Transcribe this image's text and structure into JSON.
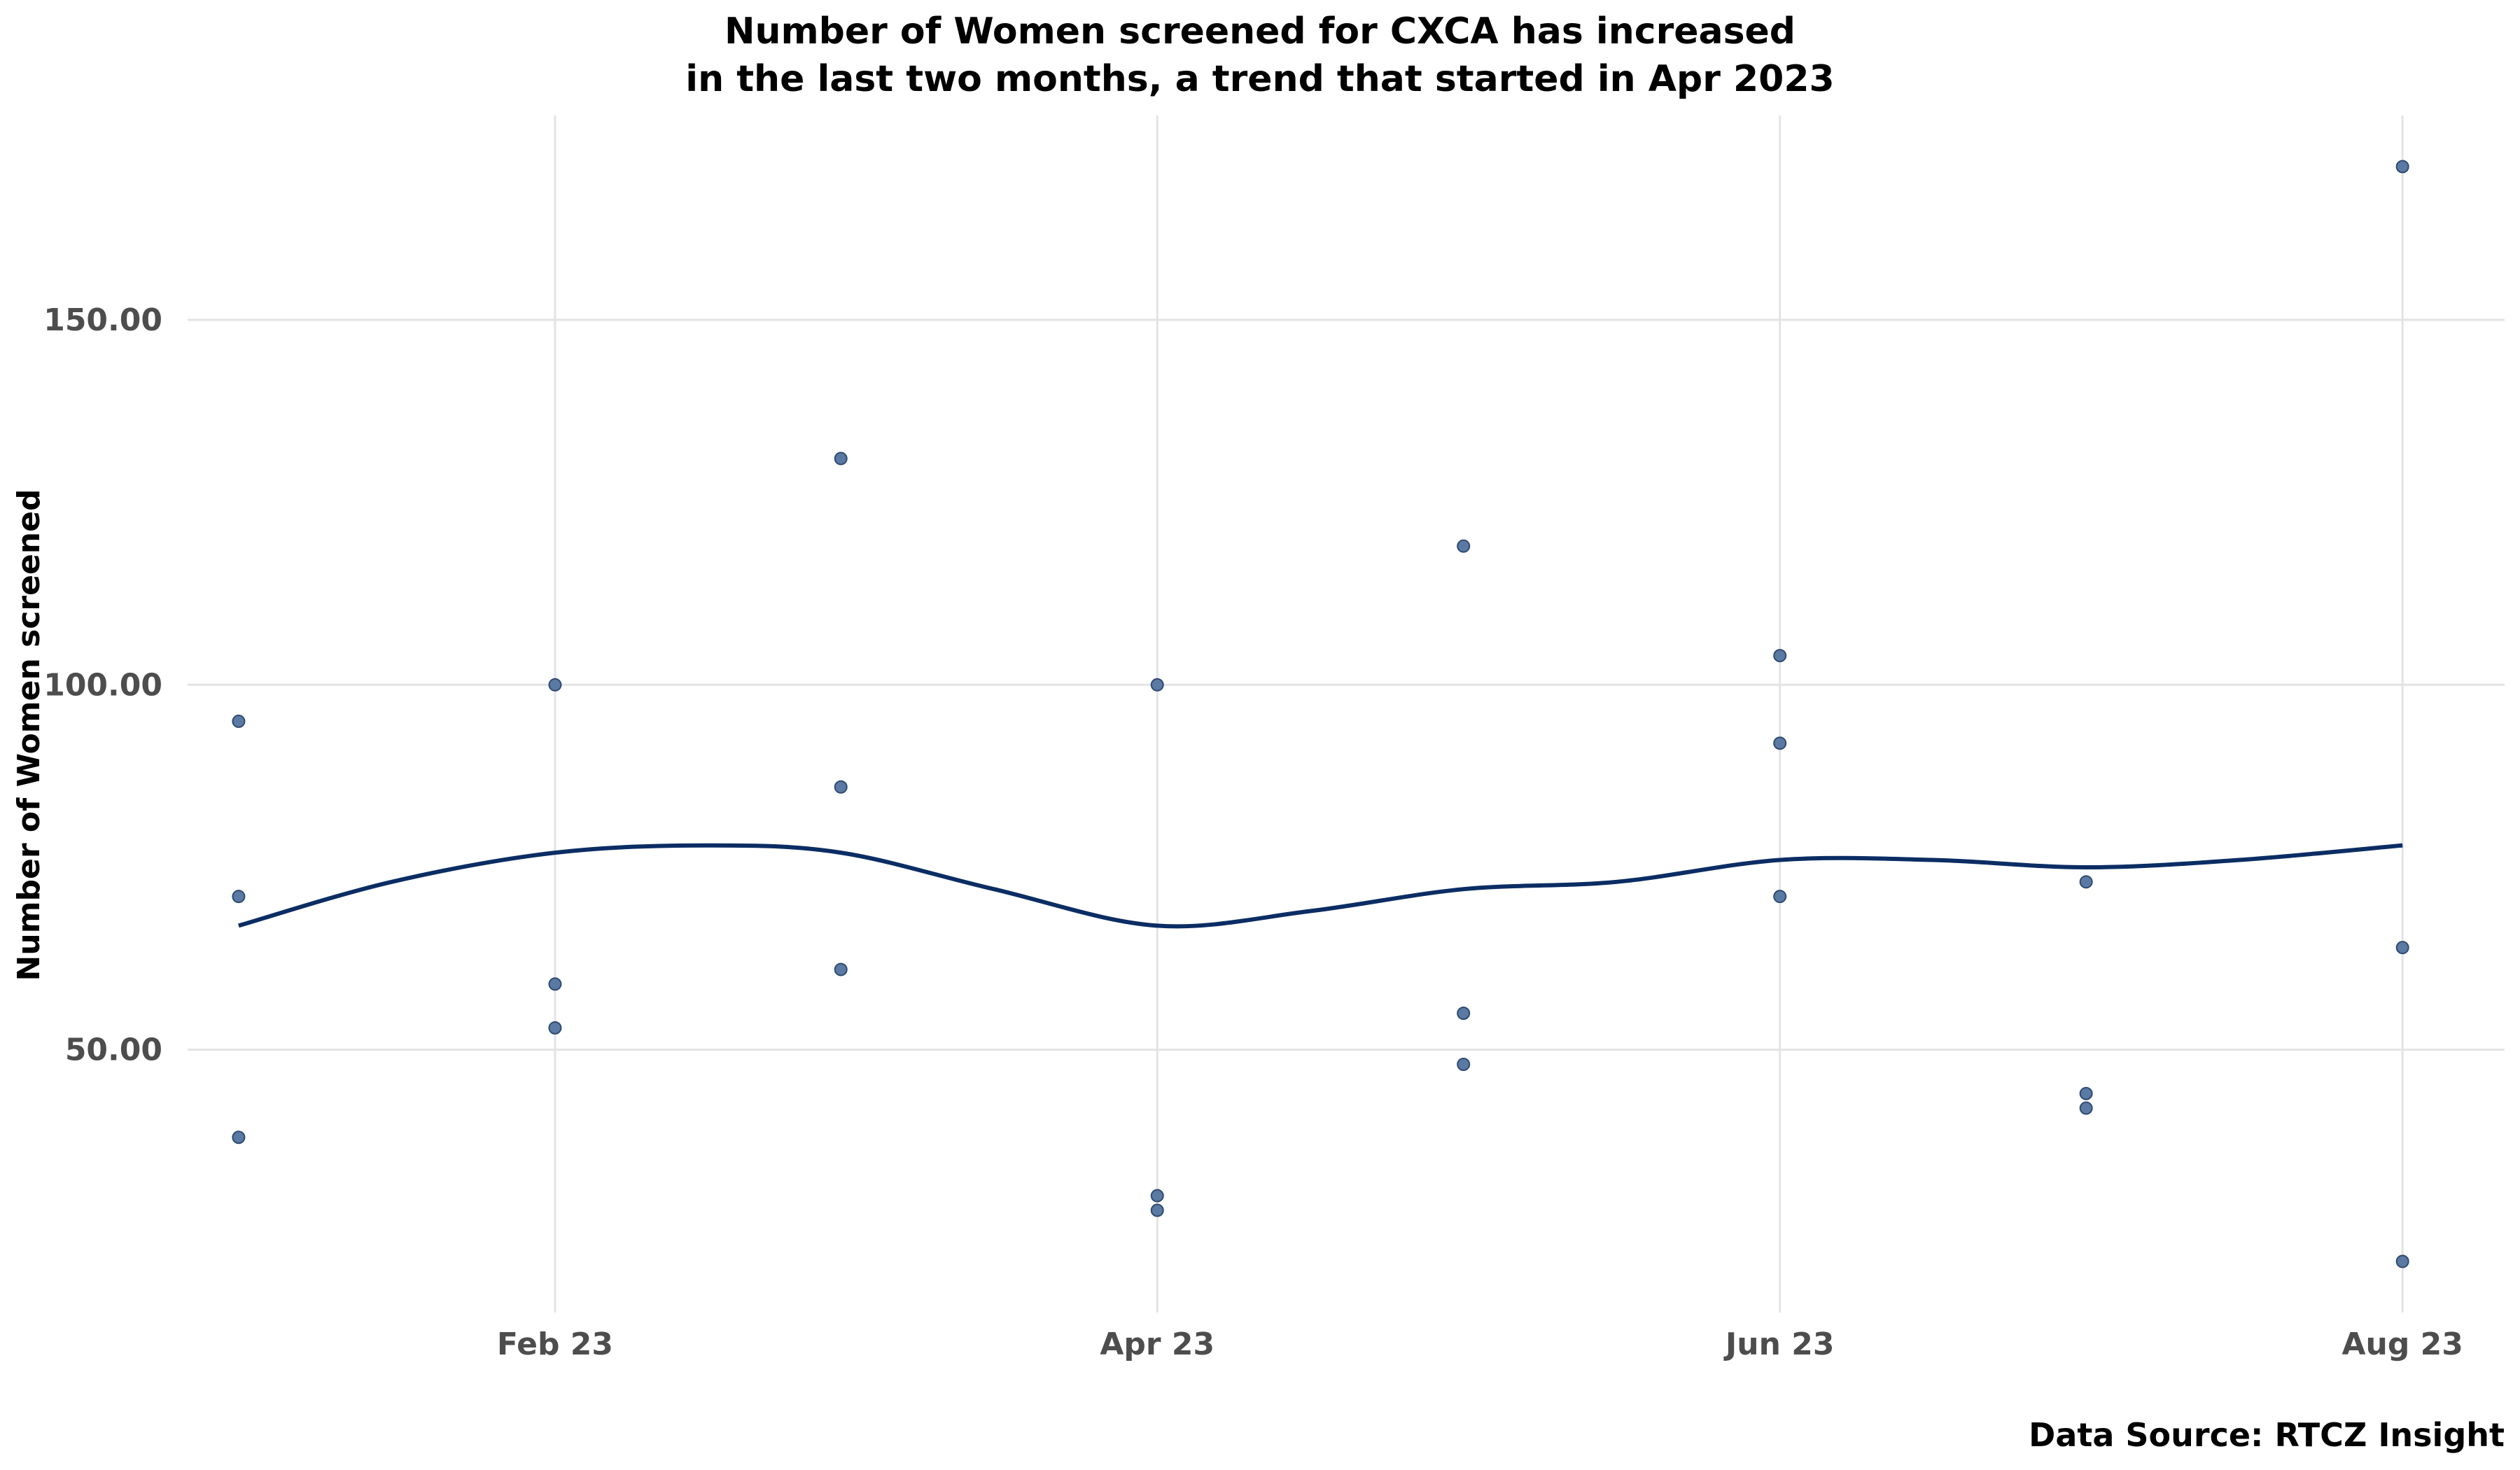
{
  "chart_data": {
    "type": "scatter",
    "title": "Number of Women screened for CXCA has increased",
    "subtitle": "in the last two months, a trend that started in Apr 2023",
    "xlabel": "",
    "ylabel": "Number of Women screened",
    "caption": "Data Source: RTCZ Insight",
    "x_ticks": [
      {
        "label": "Feb 23",
        "date": "2023-02-01"
      },
      {
        "label": "Apr 23",
        "date": "2023-04-01"
      },
      {
        "label": "Jun 23",
        "date": "2023-06-01"
      },
      {
        "label": "Aug 23",
        "date": "2023-08-01"
      }
    ],
    "y_ticks": [
      {
        "label": "50.00",
        "value": 50
      },
      {
        "label": "100.00",
        "value": 100
      },
      {
        "label": "150.00",
        "value": 150
      }
    ],
    "xlim": [
      "2022-12-27",
      "2023-08-11"
    ],
    "ylim": [
      14,
      178
    ],
    "grid": true,
    "legend": "none",
    "colors": {
      "point_fill": "#5b7aa3",
      "point_stroke": "#2e4a72",
      "trend_line": "#0b2d64"
    },
    "points": [
      {
        "date": "2023-01-01",
        "value": 95
      },
      {
        "date": "2023-01-01",
        "value": 71
      },
      {
        "date": "2023-01-01",
        "value": 38
      },
      {
        "date": "2023-02-01",
        "value": 100
      },
      {
        "date": "2023-02-01",
        "value": 59
      },
      {
        "date": "2023-02-01",
        "value": 53
      },
      {
        "date": "2023-03-01",
        "value": 131
      },
      {
        "date": "2023-03-01",
        "value": 86
      },
      {
        "date": "2023-03-01",
        "value": 61
      },
      {
        "date": "2023-04-01",
        "value": 100
      },
      {
        "date": "2023-04-01",
        "value": 30
      },
      {
        "date": "2023-04-01",
        "value": 28
      },
      {
        "date": "2023-05-01",
        "value": 119
      },
      {
        "date": "2023-05-01",
        "value": 55
      },
      {
        "date": "2023-05-01",
        "value": 48
      },
      {
        "date": "2023-06-01",
        "value": 104
      },
      {
        "date": "2023-06-01",
        "value": 92
      },
      {
        "date": "2023-06-01",
        "value": 71
      },
      {
        "date": "2023-07-01",
        "value": 73
      },
      {
        "date": "2023-07-01",
        "value": 44
      },
      {
        "date": "2023-07-01",
        "value": 42
      },
      {
        "date": "2023-08-01",
        "value": 171
      },
      {
        "date": "2023-08-01",
        "value": 64
      },
      {
        "date": "2023-08-01",
        "value": 21
      }
    ],
    "trend": [
      {
        "date": "2023-01-01",
        "value": 67
      },
      {
        "date": "2023-01-16",
        "value": 73
      },
      {
        "date": "2023-02-01",
        "value": 77
      },
      {
        "date": "2023-02-16",
        "value": 78
      },
      {
        "date": "2023-03-01",
        "value": 77
      },
      {
        "date": "2023-03-16",
        "value": 72
      },
      {
        "date": "2023-04-01",
        "value": 67
      },
      {
        "date": "2023-04-16",
        "value": 69
      },
      {
        "date": "2023-05-01",
        "value": 72
      },
      {
        "date": "2023-05-16",
        "value": 73
      },
      {
        "date": "2023-06-01",
        "value": 76
      },
      {
        "date": "2023-06-16",
        "value": 76
      },
      {
        "date": "2023-07-01",
        "value": 75
      },
      {
        "date": "2023-07-16",
        "value": 76
      },
      {
        "date": "2023-08-01",
        "value": 78
      }
    ]
  }
}
